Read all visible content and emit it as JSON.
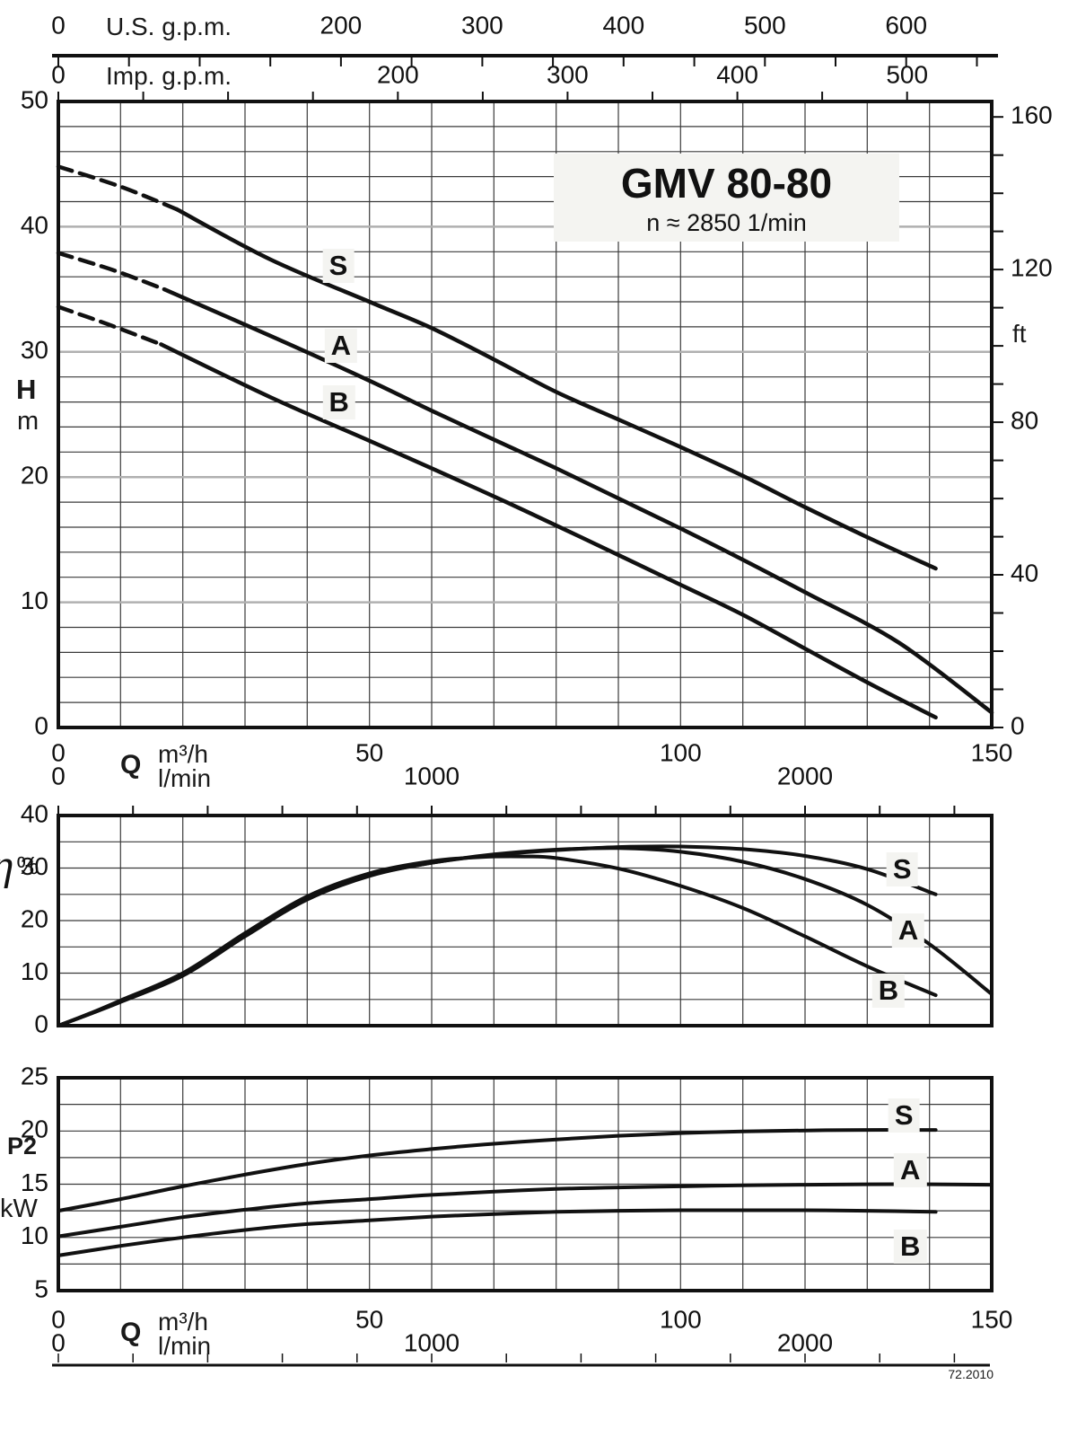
{
  "title": {
    "model": "GMV 80-80",
    "speed": "n ≈ 2850 1/min"
  },
  "footer": {
    "code": "72.2010"
  },
  "colors": {
    "ink": "#111111",
    "grid": "#3a3a3a",
    "grid_major_gray": "#b0b0b0",
    "label_bg": "#f4f4f1",
    "background": "#ffffff"
  },
  "axes": {
    "us_gpm": {
      "label": "U.S. g.p.m.",
      "tick_labels": [
        0,
        200,
        300,
        400,
        500,
        600
      ],
      "tick_step_gpm": 50,
      "gpm_to_m3h": 0.2271
    },
    "imp_gpm": {
      "label": "Imp. g.p.m.",
      "tick_labels": [
        0,
        200,
        300,
        400,
        500
      ],
      "tick_step_gpm": 50,
      "gpm_to_m3h": 0.2728
    },
    "q_m3h": {
      "label_q": "Q",
      "label_unit": "m³/h",
      "ticks": [
        0,
        50,
        100,
        150
      ]
    },
    "q_lmin": {
      "label_unit": "l/min",
      "ticks": [
        0,
        1000,
        2000
      ],
      "tick_step_lmin": 200
    },
    "head_m": {
      "label_h": "H",
      "label_unit": "m",
      "ticks": [
        50,
        40,
        30,
        20,
        10,
        0
      ]
    },
    "head_ft": {
      "label_unit": "ft",
      "ticks": [
        160,
        120,
        80,
        40,
        0
      ],
      "tick_step_ft": 10
    },
    "eta": {
      "label_eta": "η",
      "label_pct": "%",
      "ticks": [
        40,
        30,
        20,
        10,
        0
      ]
    },
    "p2": {
      "label_p": "P2",
      "label_unit": "kW",
      "ticks": [
        25,
        20,
        15,
        10,
        5
      ]
    }
  },
  "chart_data": [
    {
      "type": "line",
      "title": "GMV 80-80",
      "subtitle": "n ≈ 2850 1/min",
      "xlabel": "Q (m³/h, l/min, U.S. g.p.m., Imp. g.p.m.)",
      "ylabel": "H (m)",
      "y2label": "ft",
      "xlim": [
        0,
        150
      ],
      "ylim": [
        0,
        50
      ],
      "x_grid_step": 10,
      "y_grid_step": 2,
      "y_major_step": 10,
      "series": [
        {
          "name": "S",
          "label_at": [
            45,
            36.9
          ],
          "dashed_extension": [
            [
              0,
              44.8
            ],
            [
              10,
              43.2
            ],
            [
              19,
              41.4
            ]
          ],
          "points": [
            [
              19,
              41.4
            ],
            [
              34,
              37.4
            ],
            [
              50,
              34.0
            ],
            [
              60,
              31.9
            ],
            [
              70,
              29.4
            ],
            [
              80,
              26.8
            ],
            [
              90,
              24.6
            ],
            [
              100,
              22.4
            ],
            [
              110,
              20.1
            ],
            [
              120,
              17.6
            ],
            [
              130,
              15.2
            ],
            [
              141,
              12.7
            ]
          ]
        },
        {
          "name": "A",
          "label_at": [
            45.4,
            30.5
          ],
          "dashed_extension": [
            [
              0,
              37.9
            ],
            [
              9,
              36.5
            ],
            [
              17,
              35.0
            ]
          ],
          "points": [
            [
              17,
              35.0
            ],
            [
              34,
              31.3
            ],
            [
              50,
              27.7
            ],
            [
              60,
              25.3
            ],
            [
              70,
              23.0
            ],
            [
              80,
              20.7
            ],
            [
              90,
              18.3
            ],
            [
              100,
              15.9
            ],
            [
              110,
              13.4
            ],
            [
              120,
              10.8
            ],
            [
              135,
              6.8
            ],
            [
              150,
              1.2
            ]
          ]
        },
        {
          "name": "B",
          "label_at": [
            45.1,
            26.0
          ],
          "dashed_extension": [
            [
              0,
              33.6
            ],
            [
              8,
              32.2
            ],
            [
              16.5,
              30.6
            ]
          ],
          "points": [
            [
              16.5,
              30.6
            ],
            [
              34,
              26.4
            ],
            [
              50,
              22.9
            ],
            [
              60,
              20.7
            ],
            [
              72,
              18.0
            ],
            [
              84,
              15.2
            ],
            [
              100,
              11.4
            ],
            [
              110,
              9.0
            ],
            [
              120,
              6.3
            ],
            [
              130,
              3.6
            ],
            [
              141,
              0.8
            ]
          ]
        }
      ]
    },
    {
      "type": "line",
      "ylabel": "η %",
      "xlim": [
        0,
        150
      ],
      "ylim": [
        0,
        40
      ],
      "x_grid_step": 10,
      "y_grid_step": 5,
      "series": [
        {
          "name": "S",
          "label_at": [
            135.6,
            29.7
          ],
          "points": [
            [
              0,
              0
            ],
            [
              5,
              2.2
            ],
            [
              10,
              4.5
            ],
            [
              20,
              9.5
            ],
            [
              30,
              17.0
            ],
            [
              40,
              24.0
            ],
            [
              50,
              28.5
            ],
            [
              60,
              31.0
            ],
            [
              70,
              32.5
            ],
            [
              80,
              33.4
            ],
            [
              90,
              34.0
            ],
            [
              100,
              34.1
            ],
            [
              110,
              33.6
            ],
            [
              120,
              32.3
            ],
            [
              130,
              29.8
            ],
            [
              141,
              25.0
            ]
          ]
        },
        {
          "name": "A",
          "label_at": [
            136.6,
            18.1
          ],
          "points": [
            [
              0,
              0
            ],
            [
              5,
              2.2
            ],
            [
              10,
              4.6
            ],
            [
              20,
              9.7
            ],
            [
              30,
              17.2
            ],
            [
              40,
              24.2
            ],
            [
              50,
              28.6
            ],
            [
              60,
              31.0
            ],
            [
              70,
              32.6
            ],
            [
              80,
              33.5
            ],
            [
              90,
              33.8
            ],
            [
              100,
              33.1
            ],
            [
              110,
              31.2
            ],
            [
              120,
              27.9
            ],
            [
              130,
              23.0
            ],
            [
              140,
              15.5
            ],
            [
              150,
              6.0
            ]
          ]
        },
        {
          "name": "B",
          "label_at": [
            133.4,
            6.7
          ],
          "points": [
            [
              0,
              0
            ],
            [
              5,
              2.3
            ],
            [
              10,
              4.8
            ],
            [
              20,
              10.0
            ],
            [
              30,
              17.6
            ],
            [
              40,
              24.6
            ],
            [
              50,
              29.0
            ],
            [
              60,
              31.3
            ],
            [
              68,
              32.1
            ],
            [
              75,
              32.2
            ],
            [
              80,
              31.9
            ],
            [
              90,
              29.9
            ],
            [
              100,
              26.6
            ],
            [
              110,
              22.4
            ],
            [
              120,
              17.0
            ],
            [
              130,
              11.3
            ],
            [
              141,
              5.8
            ]
          ]
        }
      ]
    },
    {
      "type": "line",
      "ylabel": "P2 (kW)",
      "xlim": [
        0,
        150
      ],
      "ylim": [
        5,
        25
      ],
      "x_grid_step": 10,
      "y_grid_step": 2.5,
      "series": [
        {
          "name": "S",
          "label_at": [
            135.9,
            21.5
          ],
          "points": [
            [
              0,
              12.5
            ],
            [
              10,
              13.6
            ],
            [
              20,
              14.8
            ],
            [
              30,
              15.9
            ],
            [
              40,
              16.9
            ],
            [
              50,
              17.7
            ],
            [
              60,
              18.3
            ],
            [
              70,
              18.8
            ],
            [
              80,
              19.2
            ],
            [
              90,
              19.55
            ],
            [
              100,
              19.8
            ],
            [
              110,
              19.95
            ],
            [
              120,
              20.05
            ],
            [
              130,
              20.1
            ],
            [
              141,
              20.1
            ]
          ]
        },
        {
          "name": "A",
          "label_at": [
            136.9,
            16.3
          ],
          "points": [
            [
              0,
              10.1
            ],
            [
              10,
              11.0
            ],
            [
              20,
              11.9
            ],
            [
              30,
              12.6
            ],
            [
              40,
              13.2
            ],
            [
              50,
              13.6
            ],
            [
              60,
              14.0
            ],
            [
              70,
              14.3
            ],
            [
              80,
              14.55
            ],
            [
              90,
              14.7
            ],
            [
              100,
              14.8
            ],
            [
              110,
              14.9
            ],
            [
              120,
              14.95
            ],
            [
              135,
              15.0
            ],
            [
              150,
              14.95
            ]
          ]
        },
        {
          "name": "B",
          "label_at": [
            136.9,
            9.1
          ],
          "points": [
            [
              0,
              8.3
            ],
            [
              10,
              9.2
            ],
            [
              20,
              10.0
            ],
            [
              30,
              10.7
            ],
            [
              40,
              11.25
            ],
            [
              50,
              11.6
            ],
            [
              60,
              11.95
            ],
            [
              70,
              12.2
            ],
            [
              80,
              12.4
            ],
            [
              90,
              12.5
            ],
            [
              100,
              12.55
            ],
            [
              110,
              12.55
            ],
            [
              120,
              12.55
            ],
            [
              130,
              12.5
            ],
            [
              141,
              12.4
            ]
          ]
        }
      ]
    }
  ]
}
